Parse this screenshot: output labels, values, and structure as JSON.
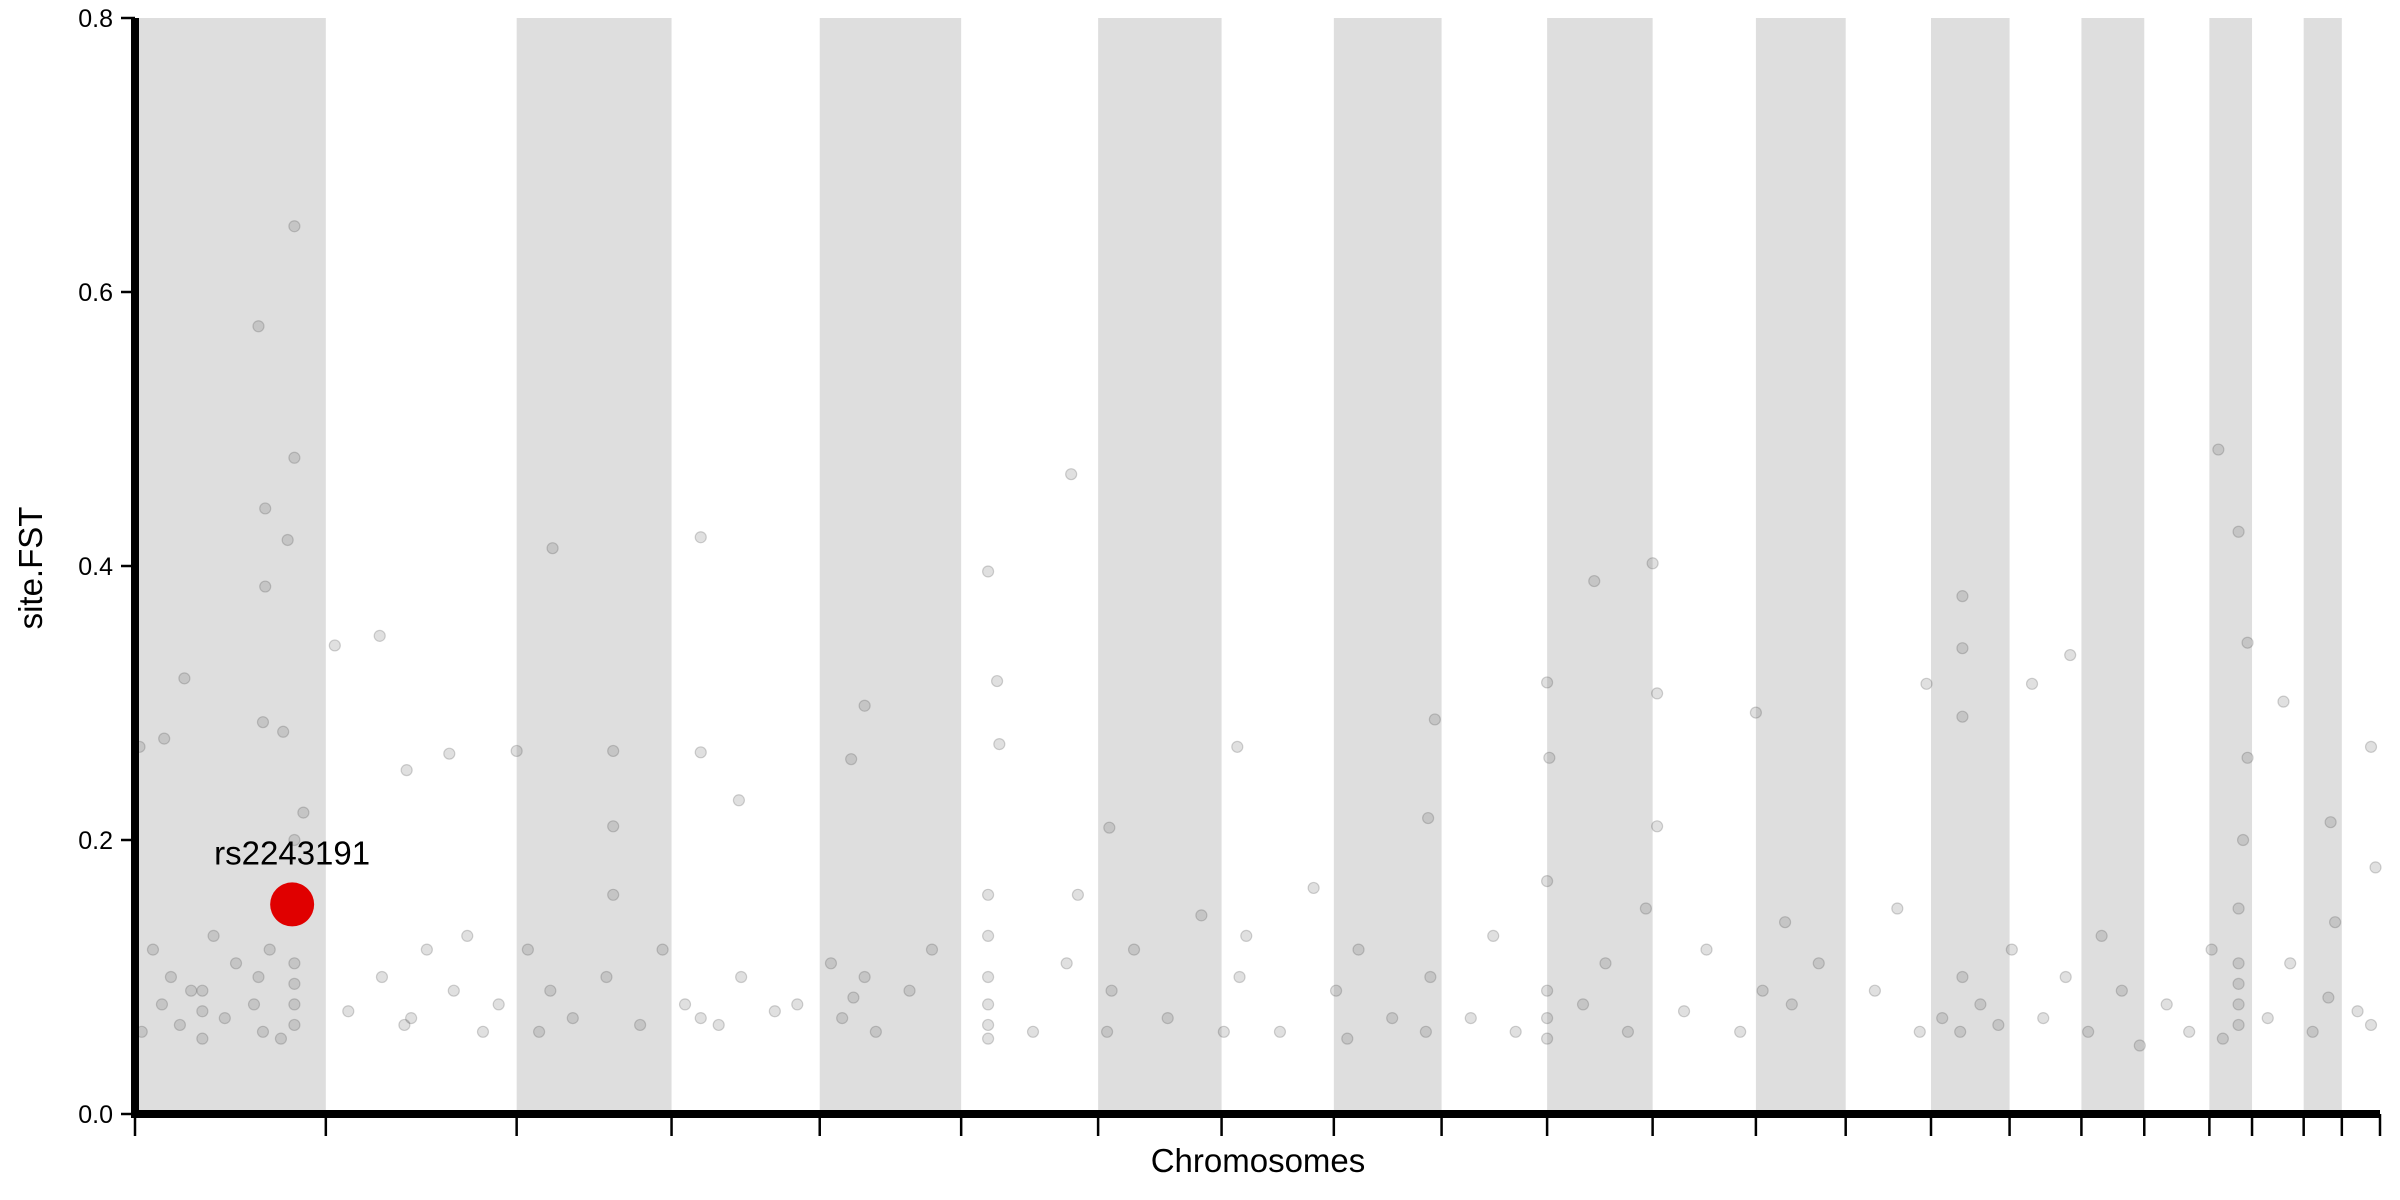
{
  "chart_data": {
    "type": "scatter",
    "xlabel": "Chromosomes",
    "ylabel": "site.FST",
    "xlim": [
      0,
      100
    ],
    "ylim": [
      0,
      0.8
    ],
    "yticks": [
      {
        "value": 0,
        "label": "0.0"
      },
      0.2,
      0.4,
      0.6,
      0.8
    ],
    "xticks": [
      0,
      8.5,
      17.0,
      23.9,
      30.5,
      36.8,
      42.9,
      48.4,
      53.4,
      58.2,
      62.9,
      67.6,
      72.2,
      76.2,
      80.0,
      83.5,
      86.7,
      89.5,
      92.4,
      94.3,
      96.6,
      98.3,
      100
    ],
    "bands": [
      [
        0,
        8.5
      ],
      [
        17.0,
        23.9
      ],
      [
        30.5,
        36.8
      ],
      [
        42.9,
        48.4
      ],
      [
        53.4,
        58.2
      ],
      [
        62.9,
        67.6
      ],
      [
        72.2,
        76.2
      ],
      [
        80.0,
        83.5
      ],
      [
        86.7,
        89.5
      ],
      [
        92.4,
        94.3
      ],
      [
        96.6,
        98.3
      ]
    ],
    "band_color": "#dedede",
    "series": [
      {
        "color": "#555555",
        "x": [
          7.1,
          5.5,
          7.1,
          5.8,
          6.8,
          5.8,
          5.7,
          6.6,
          2.2,
          0.2,
          1.3,
          10.9,
          8.9,
          12.1,
          14.0,
          17.0,
          18.6,
          21.3,
          25.2,
          25.2,
          26.9,
          32.5,
          31.9,
          38.0,
          38.4,
          41.7,
          43.4,
          49.1,
          57.9,
          57.6,
          62.9,
          65.0,
          67.6,
          67.8,
          72.2,
          79.8,
          81.4,
          81.4,
          84.5,
          86.2,
          92.8,
          93.7,
          94.1,
          95.7,
          99.6,
          97.8,
          0.3,
          0.8,
          1.2,
          1.6,
          2.0,
          2.5,
          3.0,
          3.0,
          3.0,
          3.5,
          4.0,
          4.5,
          5.3,
          5.5,
          5.7,
          6.0,
          6.5,
          7.1,
          7.1,
          7.1,
          7.1,
          7.1,
          7.5,
          9.5,
          11.0,
          12.0,
          12.3,
          13.0,
          14.2,
          14.8,
          15.5,
          16.2,
          17.5,
          18.0,
          18.5,
          19.5,
          21.0,
          21.3,
          21.3,
          22.5,
          23.5,
          24.5,
          25.2,
          26.0,
          27.0,
          28.5,
          29.5,
          31.0,
          31.5,
          32.0,
          32.5,
          33.0,
          34.5,
          35.5,
          38.0,
          38.0,
          38.0,
          38.0,
          38.0,
          38.0,
          38.5,
          40.0,
          41.5,
          42.0,
          43.3,
          43.5,
          44.5,
          46.0,
          47.5,
          48.5,
          49.2,
          49.5,
          51.0,
          52.5,
          53.5,
          54.0,
          54.5,
          56.0,
          57.5,
          57.7,
          59.5,
          60.5,
          61.5,
          62.9,
          62.9,
          62.9,
          62.9,
          63.0,
          64.5,
          65.5,
          66.5,
          67.3,
          67.8,
          69.0,
          70.0,
          71.5,
          72.5,
          73.5,
          73.8,
          75.0,
          77.5,
          78.5,
          79.5,
          80.5,
          81.3,
          81.4,
          81.4,
          82.2,
          83.0,
          83.6,
          85.0,
          86.0,
          87.0,
          87.6,
          88.5,
          89.3,
          90.5,
          91.5,
          92.5,
          93.0,
          93.7,
          93.7,
          93.7,
          93.7,
          93.7,
          93.9,
          94.1,
          95.0,
          96.0,
          97.0,
          97.7,
          98.0,
          99.0,
          99.6,
          99.8
        ],
        "values": [
          0.648,
          0.575,
          0.479,
          0.442,
          0.419,
          0.385,
          0.286,
          0.279,
          0.318,
          0.268,
          0.274,
          0.349,
          0.342,
          0.251,
          0.263,
          0.265,
          0.413,
          0.265,
          0.421,
          0.264,
          0.229,
          0.298,
          0.259,
          0.396,
          0.316,
          0.467,
          0.209,
          0.268,
          0.288,
          0.216,
          0.315,
          0.389,
          0.402,
          0.307,
          0.293,
          0.314,
          0.378,
          0.34,
          0.314,
          0.335,
          0.485,
          0.425,
          0.344,
          0.301,
          0.268,
          0.213,
          0.06,
          0.12,
          0.08,
          0.1,
          0.065,
          0.09,
          0.055,
          0.075,
          0.09,
          0.13,
          0.07,
          0.11,
          0.08,
          0.1,
          0.06,
          0.12,
          0.055,
          0.065,
          0.08,
          0.095,
          0.11,
          0.2,
          0.22,
          0.075,
          0.1,
          0.065,
          0.07,
          0.12,
          0.09,
          0.13,
          0.06,
          0.08,
          0.12,
          0.06,
          0.09,
          0.07,
          0.1,
          0.16,
          0.21,
          0.065,
          0.12,
          0.08,
          0.07,
          0.065,
          0.1,
          0.075,
          0.08,
          0.11,
          0.07,
          0.085,
          0.1,
          0.06,
          0.09,
          0.12,
          0.055,
          0.065,
          0.08,
          0.1,
          0.13,
          0.16,
          0.27,
          0.06,
          0.11,
          0.16,
          0.06,
          0.09,
          0.12,
          0.07,
          0.145,
          0.06,
          0.1,
          0.13,
          0.06,
          0.165,
          0.09,
          0.055,
          0.12,
          0.07,
          0.06,
          0.1,
          0.07,
          0.13,
          0.06,
          0.055,
          0.07,
          0.09,
          0.17,
          0.26,
          0.08,
          0.11,
          0.06,
          0.15,
          0.21,
          0.075,
          0.12,
          0.06,
          0.09,
          0.14,
          0.08,
          0.11,
          0.09,
          0.15,
          0.06,
          0.07,
          0.06,
          0.1,
          0.29,
          0.08,
          0.065,
          0.12,
          0.07,
          0.1,
          0.06,
          0.13,
          0.09,
          0.05,
          0.08,
          0.06,
          0.12,
          0.055,
          0.065,
          0.08,
          0.095,
          0.11,
          0.15,
          0.2,
          0.26,
          0.07,
          0.11,
          0.06,
          0.085,
          0.14,
          0.075,
          0.065,
          0.18
        ]
      }
    ],
    "annotations": [
      {
        "text": "rs2243191",
        "x": 7.0,
        "y": 0.153,
        "color": "#e00000"
      }
    ]
  }
}
